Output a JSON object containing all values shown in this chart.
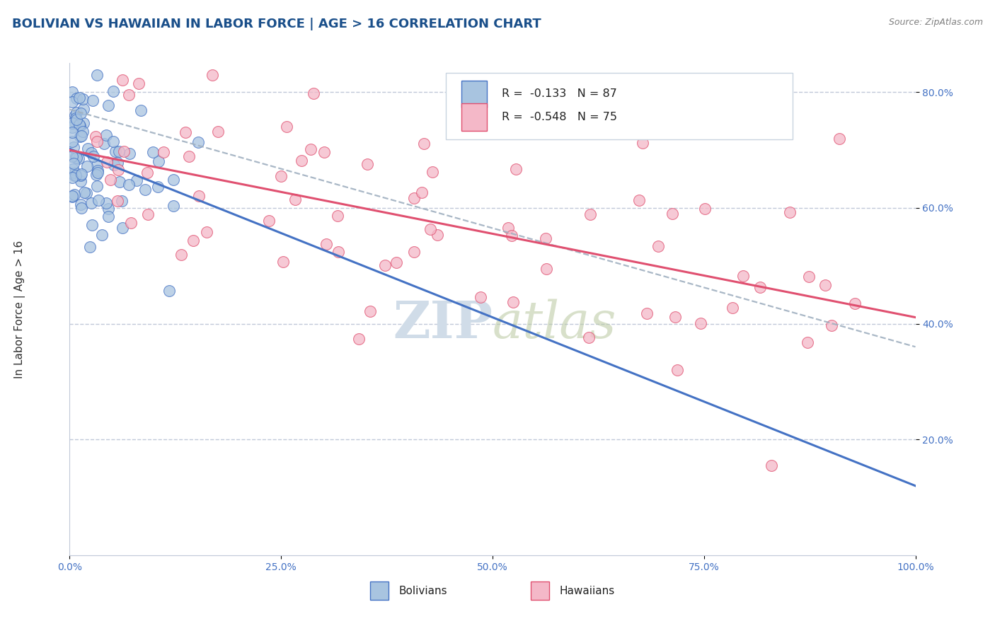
{
  "title": "BOLIVIAN VS HAWAIIAN IN LABOR FORCE | AGE > 16 CORRELATION CHART",
  "source_text": "Source: ZipAtlas.com",
  "ylabel": "In Labor Force | Age > 16",
  "x_min": 0.0,
  "x_max": 1.0,
  "y_min": 0.0,
  "y_max": 0.85,
  "x_ticks": [
    0.0,
    0.25,
    0.5,
    0.75,
    1.0
  ],
  "x_tick_labels": [
    "0.0%",
    "25.0%",
    "50.0%",
    "75.0%",
    "100.0%"
  ],
  "y_ticks": [
    0.2,
    0.4,
    0.6,
    0.8
  ],
  "y_tick_labels": [
    "20.0%",
    "40.0%",
    "60.0%",
    "80.0%"
  ],
  "R_bolivian": -0.133,
  "N_bolivian": 87,
  "R_hawaiian": -0.548,
  "N_hawaiian": 75,
  "bolivian_color": "#a8c4e0",
  "hawaiian_color": "#f4b8c8",
  "bolivian_line_color": "#4472c4",
  "hawaiian_line_color": "#e05070",
  "grid_color": "#c0c8d8",
  "title_color": "#1a4f8a",
  "source_color": "#808080",
  "watermark_color": "#d0dce8",
  "background_color": "#ffffff",
  "dash_line_color": "#a0b0c0",
  "legend_border_color": "#c8d4e0"
}
